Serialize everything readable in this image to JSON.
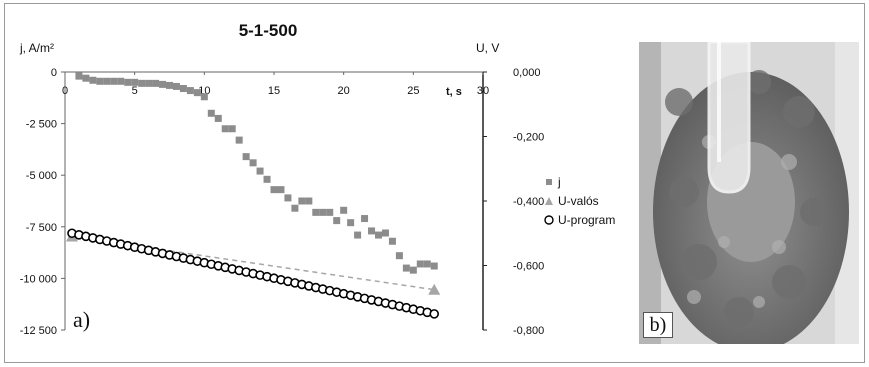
{
  "chart_data": {
    "type": "scatter",
    "title": "5-1-500",
    "panel_label": "a)",
    "xlabel": "t, s",
    "ylabel_left": "j, A/m²",
    "ylabel_right": "U, V",
    "xlim": [
      0,
      30
    ],
    "ylim_left": [
      -12500,
      0
    ],
    "ylim_right": [
      -0.8,
      0.0
    ],
    "x_ticks": [
      "0",
      "5",
      "10",
      "15",
      "20",
      "25",
      "30"
    ],
    "y_left_ticks": [
      "0",
      "-2 500",
      "-5 000",
      "-7 500",
      "-10 000",
      "-12 500"
    ],
    "y_right_ticks": [
      "0,000",
      "-0,200",
      "-0,400",
      "-0,600",
      "-0,800"
    ],
    "legend_position": "right",
    "series": [
      {
        "name": "j",
        "axis": "left",
        "marker": "square",
        "color": "#8c8c8c",
        "x": [
          1,
          1.5,
          2,
          2.5,
          3,
          3.5,
          4,
          4.5,
          5,
          5.5,
          6,
          6.5,
          7,
          7.5,
          8,
          8.5,
          9,
          9.5,
          10,
          10.5,
          11,
          11.5,
          12,
          12.5,
          13,
          13.5,
          14,
          14.5,
          15,
          15.5,
          16,
          16.5,
          17,
          17.5,
          18,
          18.5,
          19,
          19.5,
          20,
          20.5,
          21,
          21.5,
          22,
          22.5,
          23,
          23.5,
          24,
          24.5,
          25,
          25.5,
          26,
          26.5
        ],
        "values": [
          -200,
          -300,
          -400,
          -450,
          -450,
          -450,
          -450,
          -500,
          -500,
          -550,
          -550,
          -550,
          -600,
          -650,
          -700,
          -800,
          -900,
          -1000,
          -1200,
          -2000,
          -2250,
          -2750,
          -2750,
          -3300,
          -4100,
          -4400,
          -4800,
          -5200,
          -5700,
          -5700,
          -6100,
          -6600,
          -6250,
          -6250,
          -6800,
          -6800,
          -6800,
          -7200,
          -6700,
          -7300,
          -7900,
          -7100,
          -7700,
          -7900,
          -7800,
          -8200,
          -8900,
          -9500,
          -9600,
          -9300,
          -9300,
          -9400
        ]
      },
      {
        "name": "U-valós",
        "axis": "right",
        "marker": "triangle",
        "line": "dashed",
        "color": "#a6a6a6",
        "x": [
          0.5,
          26.5
        ],
        "values": [
          -0.51,
          -0.675
        ]
      },
      {
        "name": "U-program",
        "axis": "right",
        "marker": "circle",
        "color": "#000000",
        "x_start": 0.5,
        "x_step": 0.5,
        "x_end": 26.5,
        "value_start": -0.5,
        "value_end": -0.75
      }
    ]
  },
  "photo": {
    "label": "b)",
    "description_icon": "plant-photo-icon"
  }
}
